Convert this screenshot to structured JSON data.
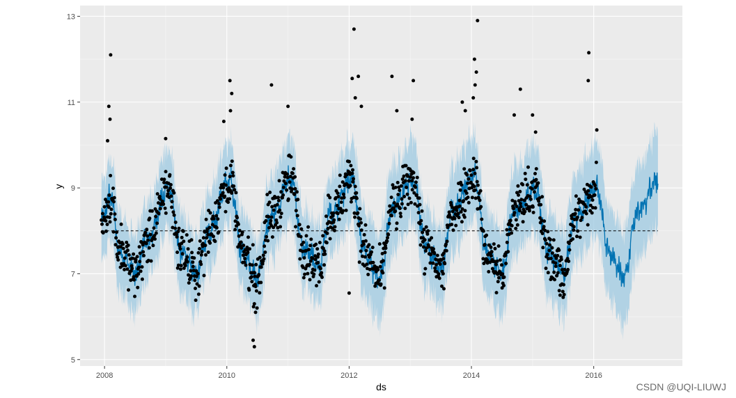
{
  "chart_data": {
    "type": "scatter",
    "title": "",
    "xlabel": "ds",
    "ylabel": "y",
    "xlim": [
      2007.6,
      2017.45
    ],
    "ylim": [
      4.85,
      13.25
    ],
    "x_ticks": [
      2008,
      2010,
      2012,
      2014,
      2016
    ],
    "x_tick_labels": [
      "2008",
      "2010",
      "2012",
      "2014",
      "2016"
    ],
    "y_ticks": [
      5,
      7,
      9,
      11,
      13
    ],
    "y_tick_labels": [
      "5",
      "7",
      "9",
      "11",
      "13"
    ],
    "grid": true,
    "legend": "none",
    "reference_line": {
      "y": 8.0,
      "style": "dashed",
      "x_range": [
        2007.95,
        2017.05
      ]
    },
    "forecast": {
      "color": "#0072B2",
      "band_color": "#9ecae1",
      "x_range": [
        2007.95,
        2017.05
      ],
      "anchors": [
        {
          "x": 2007.95,
          "yhat": 8.2,
          "lower": 7.4,
          "upper": 9.0
        },
        {
          "x": 2008.1,
          "yhat": 8.8,
          "lower": 7.9,
          "upper": 9.6
        },
        {
          "x": 2008.25,
          "yhat": 7.5,
          "lower": 6.7,
          "upper": 8.3
        },
        {
          "x": 2008.5,
          "yhat": 7.0,
          "lower": 6.2,
          "upper": 7.8
        },
        {
          "x": 2008.7,
          "yhat": 7.8,
          "lower": 7.0,
          "upper": 8.6
        },
        {
          "x": 2009.05,
          "yhat": 9.0,
          "lower": 8.1,
          "upper": 9.8
        },
        {
          "x": 2009.25,
          "yhat": 7.5,
          "lower": 6.7,
          "upper": 8.3
        },
        {
          "x": 2009.5,
          "yhat": 7.0,
          "lower": 6.2,
          "upper": 7.8
        },
        {
          "x": 2009.7,
          "yhat": 8.0,
          "lower": 7.2,
          "upper": 8.8
        },
        {
          "x": 2010.05,
          "yhat": 9.2,
          "lower": 8.3,
          "upper": 10.0
        },
        {
          "x": 2010.25,
          "yhat": 7.5,
          "lower": 6.7,
          "upper": 8.3
        },
        {
          "x": 2010.5,
          "yhat": 6.9,
          "lower": 6.1,
          "upper": 7.7
        },
        {
          "x": 2010.7,
          "yhat": 8.3,
          "lower": 7.5,
          "upper": 9.1
        },
        {
          "x": 2011.05,
          "yhat": 9.2,
          "lower": 8.3,
          "upper": 10.0
        },
        {
          "x": 2011.25,
          "yhat": 7.6,
          "lower": 6.8,
          "upper": 8.4
        },
        {
          "x": 2011.5,
          "yhat": 7.2,
          "lower": 6.4,
          "upper": 8.0
        },
        {
          "x": 2011.7,
          "yhat": 8.4,
          "lower": 7.6,
          "upper": 9.2
        },
        {
          "x": 2012.05,
          "yhat": 9.2,
          "lower": 8.3,
          "upper": 10.0
        },
        {
          "x": 2012.25,
          "yhat": 7.5,
          "lower": 6.5,
          "upper": 8.4
        },
        {
          "x": 2012.5,
          "yhat": 6.9,
          "lower": 6.0,
          "upper": 7.8
        },
        {
          "x": 2012.7,
          "yhat": 8.5,
          "lower": 7.6,
          "upper": 9.4
        },
        {
          "x": 2013.05,
          "yhat": 9.2,
          "lower": 8.3,
          "upper": 10.0
        },
        {
          "x": 2013.25,
          "yhat": 7.6,
          "lower": 6.8,
          "upper": 8.4
        },
        {
          "x": 2013.5,
          "yhat": 7.1,
          "lower": 6.3,
          "upper": 7.9
        },
        {
          "x": 2013.7,
          "yhat": 8.5,
          "lower": 7.6,
          "upper": 9.4
        },
        {
          "x": 2014.05,
          "yhat": 9.3,
          "lower": 8.4,
          "upper": 10.1
        },
        {
          "x": 2014.25,
          "yhat": 7.5,
          "lower": 6.6,
          "upper": 8.4
        },
        {
          "x": 2014.5,
          "yhat": 7.0,
          "lower": 6.1,
          "upper": 7.9
        },
        {
          "x": 2014.7,
          "yhat": 8.5,
          "lower": 7.6,
          "upper": 9.4
        },
        {
          "x": 2015.05,
          "yhat": 9.0,
          "lower": 8.1,
          "upper": 9.9
        },
        {
          "x": 2015.25,
          "yhat": 7.5,
          "lower": 6.6,
          "upper": 8.4
        },
        {
          "x": 2015.5,
          "yhat": 7.0,
          "lower": 6.1,
          "upper": 7.9
        },
        {
          "x": 2015.7,
          "yhat": 8.3,
          "lower": 7.4,
          "upper": 9.2
        },
        {
          "x": 2016.05,
          "yhat": 9.0,
          "lower": 8.0,
          "upper": 10.0
        },
        {
          "x": 2016.25,
          "yhat": 7.5,
          "lower": 6.5,
          "upper": 8.5
        },
        {
          "x": 2016.5,
          "yhat": 6.9,
          "lower": 5.9,
          "upper": 7.9
        },
        {
          "x": 2016.7,
          "yhat": 8.4,
          "lower": 7.4,
          "upper": 9.4
        },
        {
          "x": 2017.05,
          "yhat": 9.2,
          "lower": 8.2,
          "upper": 10.2
        }
      ]
    },
    "observations": {
      "color": "#000000",
      "x_range": [
        2007.95,
        2016.05
      ],
      "outliers": [
        {
          "x": 2008.1,
          "y": 12.1
        },
        {
          "x": 2008.07,
          "y": 10.9
        },
        {
          "x": 2008.09,
          "y": 10.6
        },
        {
          "x": 2008.05,
          "y": 10.1
        },
        {
          "x": 2009.0,
          "y": 10.15
        },
        {
          "x": 2009.95,
          "y": 10.55
        },
        {
          "x": 2010.05,
          "y": 11.5
        },
        {
          "x": 2010.08,
          "y": 11.2
        },
        {
          "x": 2010.06,
          "y": 10.8
        },
        {
          "x": 2010.43,
          "y": 5.45
        },
        {
          "x": 2010.45,
          "y": 5.3
        },
        {
          "x": 2010.47,
          "y": 6.1
        },
        {
          "x": 2010.45,
          "y": 6.3
        },
        {
          "x": 2010.73,
          "y": 11.4
        },
        {
          "x": 2011.0,
          "y": 10.9
        },
        {
          "x": 2012.08,
          "y": 12.7
        },
        {
          "x": 2012.15,
          "y": 11.6
        },
        {
          "x": 2012.05,
          "y": 11.55
        },
        {
          "x": 2012.1,
          "y": 11.1
        },
        {
          "x": 2012.2,
          "y": 10.9
        },
        {
          "x": 2012.0,
          "y": 6.55
        },
        {
          "x": 2012.7,
          "y": 11.6
        },
        {
          "x": 2012.78,
          "y": 10.8
        },
        {
          "x": 2013.05,
          "y": 11.5
        },
        {
          "x": 2013.03,
          "y": 10.6
        },
        {
          "x": 2013.55,
          "y": 6.65
        },
        {
          "x": 2013.9,
          "y": 10.8
        },
        {
          "x": 2013.85,
          "y": 11.0
        },
        {
          "x": 2014.05,
          "y": 12.0
        },
        {
          "x": 2014.08,
          "y": 11.7
        },
        {
          "x": 2014.1,
          "y": 12.9
        },
        {
          "x": 2014.06,
          "y": 11.4
        },
        {
          "x": 2014.03,
          "y": 11.1
        },
        {
          "x": 2014.7,
          "y": 10.7
        },
        {
          "x": 2014.8,
          "y": 11.3
        },
        {
          "x": 2015.0,
          "y": 10.7
        },
        {
          "x": 2015.05,
          "y": 10.3
        },
        {
          "x": 2015.92,
          "y": 12.15
        },
        {
          "x": 2015.91,
          "y": 11.5
        },
        {
          "x": 2016.05,
          "y": 10.35
        },
        {
          "x": 2015.5,
          "y": 6.45
        },
        {
          "x": 2015.45,
          "y": 6.5
        }
      ]
    }
  },
  "watermark": "CSDN @UQI-LIUWJ"
}
